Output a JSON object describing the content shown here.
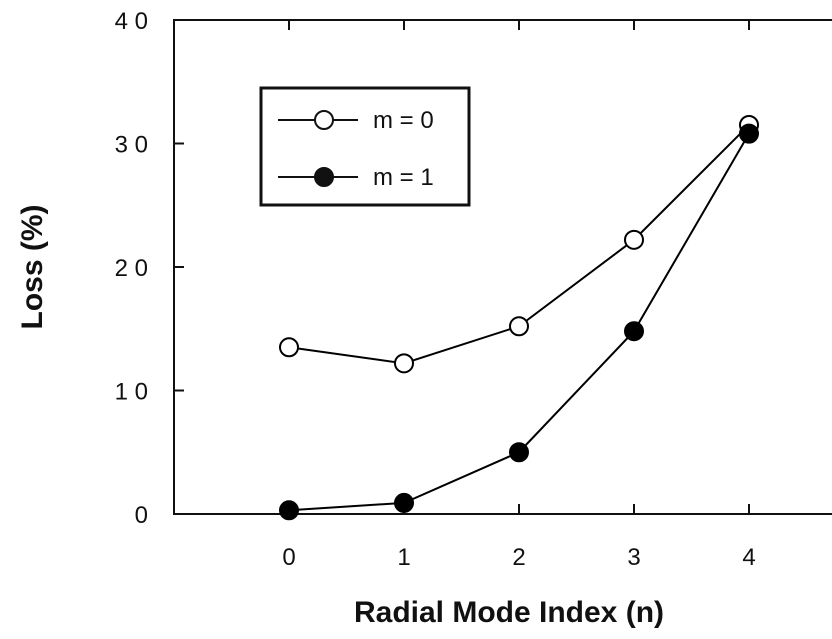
{
  "chart_data": {
    "type": "line",
    "xlabel": "Radial Mode Index (n)",
    "ylabel": "Loss (%)",
    "x": [
      0,
      1,
      2,
      3,
      4
    ],
    "x_tick_labels": [
      "0",
      "1",
      "2",
      "3",
      "4"
    ],
    "xlim": [
      -1,
      5
    ],
    "ylim": [
      0,
      40
    ],
    "y_ticks": [
      0,
      10,
      20,
      30,
      40
    ],
    "y_tick_labels": [
      "0",
      "1 0",
      "2 0",
      "3 0",
      "4 0"
    ],
    "grid": false,
    "legend_position": "top-left",
    "series": [
      {
        "name": "m = 0",
        "marker": "open-circle",
        "color": "#000000",
        "values": [
          13.5,
          12.2,
          15.2,
          22.2,
          31.5
        ]
      },
      {
        "name": "m = 1",
        "marker": "filled-circle",
        "color": "#000000",
        "values": [
          0.3,
          0.9,
          5.0,
          14.8,
          30.8
        ]
      }
    ]
  }
}
